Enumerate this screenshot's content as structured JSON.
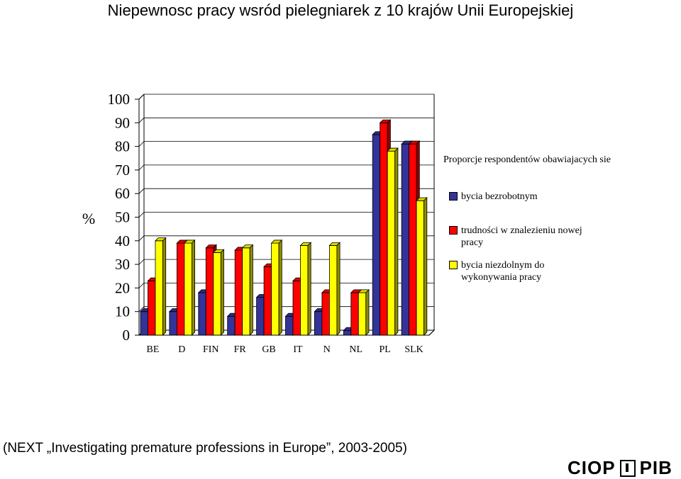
{
  "title": "Niepewnosc pracy wsród pielegniarek z 10 krajów Unii Europejskiej",
  "chart_data": {
    "type": "bar",
    "ylabel": "%",
    "ylim": [
      0,
      100
    ],
    "yticks": [
      0,
      10,
      20,
      30,
      40,
      50,
      60,
      70,
      80,
      90,
      100
    ],
    "categories": [
      "BE",
      "D",
      "FIN",
      "FR",
      "GB",
      "IT",
      "N",
      "NL",
      "PL",
      "SLK"
    ],
    "legend_title": "Proporcje respondentów obawiajacych sie",
    "legend_position": "right",
    "series": [
      {
        "name": "bycia bezrobotnym",
        "color": "#333399",
        "values": [
          10,
          10,
          18,
          8,
          16,
          8,
          10,
          2,
          85,
          81
        ]
      },
      {
        "name": "trudności w znalezieniu nowej pracy",
        "color": "#FF0000",
        "values": [
          23,
          39,
          37,
          36,
          29,
          23,
          18,
          18,
          90,
          81
        ]
      },
      {
        "name": "bycia niezdolnym do wykonywania pracy",
        "color": "#FFFF00",
        "values": [
          40,
          39,
          35,
          37,
          39,
          38,
          38,
          18,
          78,
          57
        ]
      }
    ]
  },
  "source": "(NEXT „Investigating premature professions in Europe”, 2003-2005)",
  "logo": {
    "left": "CIOP",
    "right": "PIB"
  }
}
